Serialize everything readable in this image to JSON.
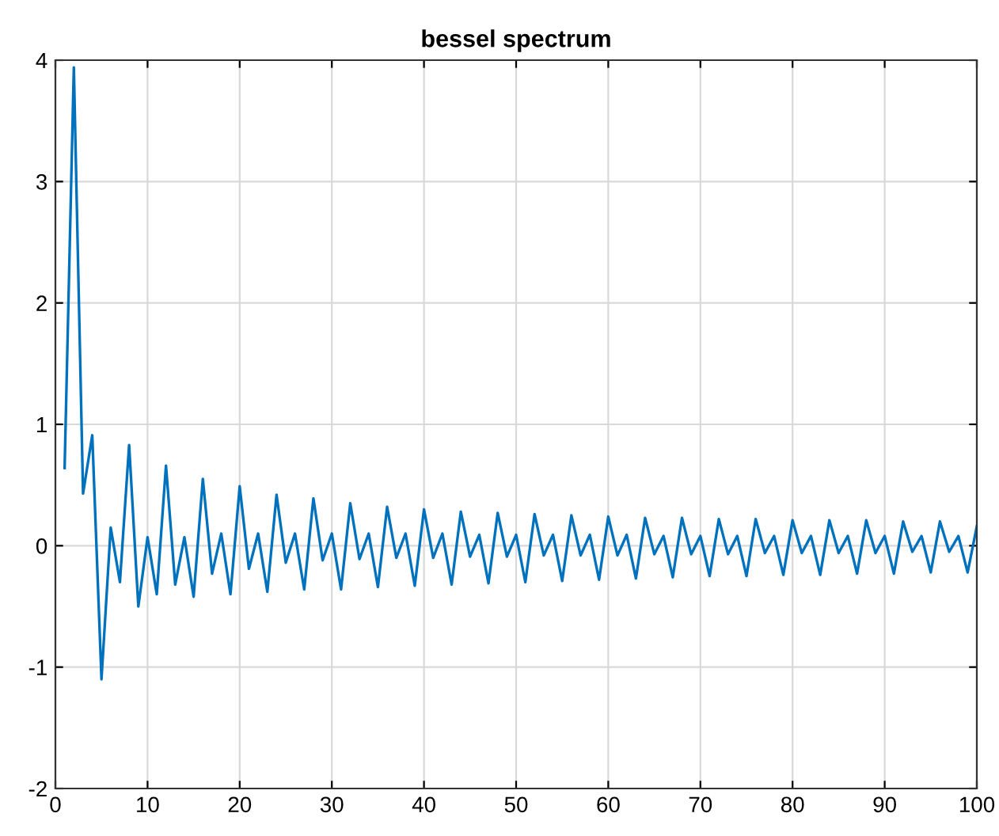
{
  "chart_data": {
    "type": "line",
    "title": "bessel spectrum",
    "x": [
      1,
      2,
      3,
      4,
      5,
      6,
      7,
      8,
      9,
      10,
      11,
      12,
      13,
      14,
      15,
      16,
      17,
      18,
      19,
      20,
      21,
      22,
      23,
      24,
      25,
      26,
      27,
      28,
      29,
      30,
      31,
      32,
      33,
      34,
      35,
      36,
      37,
      38,
      39,
      40,
      41,
      42,
      43,
      44,
      45,
      46,
      47,
      48,
      49,
      50,
      51,
      52,
      53,
      54,
      55,
      56,
      57,
      58,
      59,
      60,
      61,
      62,
      63,
      64,
      65,
      66,
      67,
      68,
      69,
      70,
      71,
      72,
      73,
      74,
      75,
      76,
      77,
      78,
      79,
      80,
      81,
      82,
      83,
      84,
      85,
      86,
      87,
      88,
      89,
      90,
      91,
      92,
      93,
      94,
      95,
      96,
      97,
      98,
      99,
      100
    ],
    "series": [
      {
        "color": "#0072bd",
        "values": [
          0.64,
          3.94,
          0.43,
          0.91,
          -1.1,
          0.15,
          -0.3,
          0.83,
          -0.5,
          0.07,
          -0.4,
          0.66,
          -0.32,
          0.07,
          -0.42,
          0.55,
          -0.23,
          0.1,
          -0.4,
          0.49,
          -0.19,
          0.1,
          -0.38,
          0.42,
          -0.14,
          0.1,
          -0.36,
          0.39,
          -0.12,
          0.1,
          -0.36,
          0.35,
          -0.11,
          0.1,
          -0.34,
          0.32,
          -0.1,
          0.1,
          -0.33,
          0.3,
          -0.1,
          0.1,
          -0.32,
          0.28,
          -0.09,
          0.09,
          -0.31,
          0.27,
          -0.09,
          0.09,
          -0.3,
          0.26,
          -0.08,
          0.09,
          -0.29,
          0.25,
          -0.08,
          0.09,
          -0.28,
          0.24,
          -0.08,
          0.09,
          -0.27,
          0.23,
          -0.07,
          0.08,
          -0.26,
          0.23,
          -0.07,
          0.08,
          -0.25,
          0.22,
          -0.07,
          0.08,
          -0.25,
          0.22,
          -0.06,
          0.08,
          -0.24,
          0.21,
          -0.06,
          0.08,
          -0.24,
          0.21,
          -0.06,
          0.08,
          -0.23,
          0.21,
          -0.06,
          0.08,
          -0.23,
          0.2,
          -0.05,
          0.08,
          -0.22,
          0.2,
          -0.05,
          0.08,
          -0.22,
          0.16
        ]
      }
    ],
    "xlim": [
      0,
      100
    ],
    "xticks": [
      0,
      10,
      20,
      30,
      40,
      50,
      60,
      70,
      80,
      90,
      100
    ],
    "ylim": [
      -2,
      4
    ],
    "yticks": [
      -2,
      -1,
      0,
      1,
      2,
      3,
      4
    ],
    "grid": true,
    "marker": "none",
    "line_style": "solid"
  }
}
